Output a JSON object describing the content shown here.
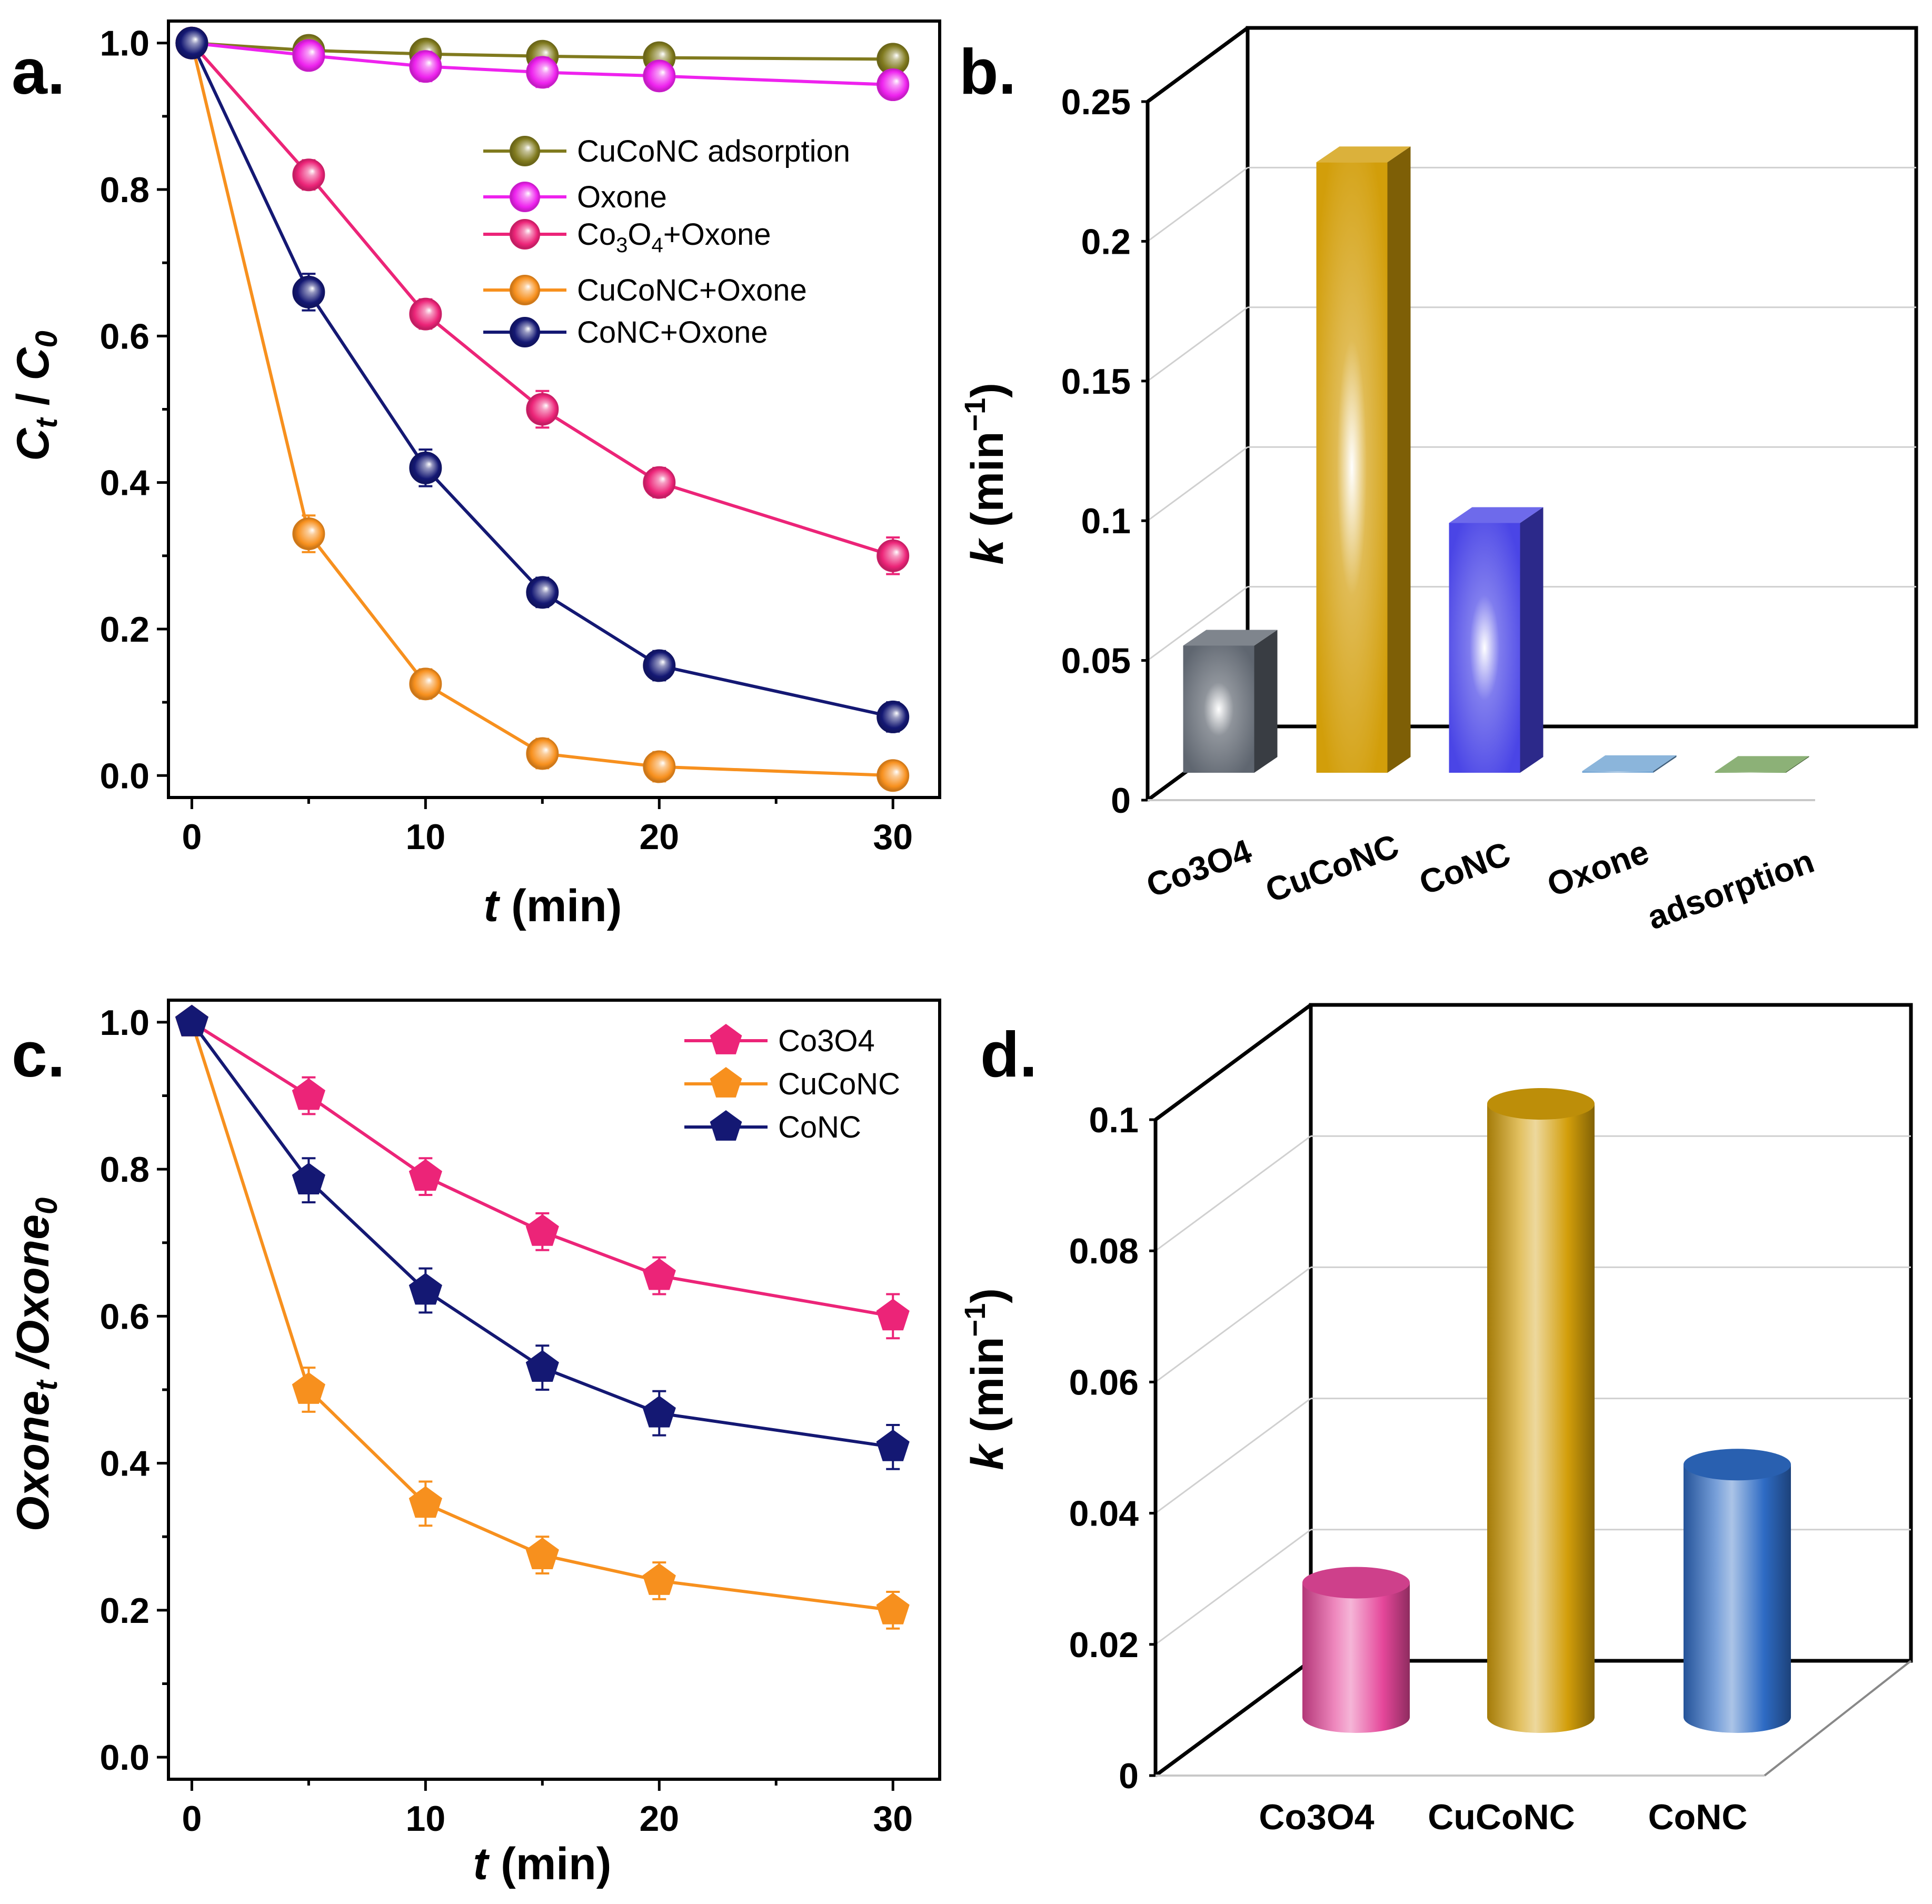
{
  "figure": {
    "panel_labels": {
      "a": "a.",
      "b": "b.",
      "c": "c.",
      "d": "d."
    }
  },
  "chart_data": [
    {
      "panel": "a",
      "type": "line",
      "title": "",
      "ylabel_main": "C",
      "ylabel_sub_t": "t",
      "ylabel_slash": " / ",
      "ylabel_main2": "C",
      "ylabel_sub_0": "0",
      "xlabel_var": "t",
      "xlabel_unit": " (min)",
      "xlim": [
        -1,
        32
      ],
      "ylim": [
        -0.03,
        1.03
      ],
      "xticks": [
        0,
        10,
        20,
        30
      ],
      "xtick_labels": [
        "0",
        "10",
        "20",
        "30"
      ],
      "yticks": [
        0.0,
        0.2,
        0.4,
        0.6,
        0.8,
        1.0
      ],
      "ytick_labels": [
        "0.0",
        "0.2",
        "0.4",
        "0.6",
        "0.8",
        "1.0"
      ],
      "x": [
        0,
        5,
        10,
        15,
        20,
        30
      ],
      "series": [
        {
          "name": "CuCoNC adsorption",
          "color": "#807a1e",
          "marker": "circle",
          "values": [
            1.0,
            0.99,
            0.985,
            0.982,
            0.98,
            0.978
          ],
          "errors": [
            0.006,
            0.015,
            0.015,
            0.015,
            0.015,
            0.012
          ]
        },
        {
          "name": "Oxone",
          "color": "#ee22ee",
          "marker": "circle",
          "values": [
            1.0,
            0.983,
            0.968,
            0.96,
            0.955,
            0.943
          ],
          "errors": [
            0.006,
            0.018,
            0.02,
            0.02,
            0.018,
            0.018
          ]
        },
        {
          "name": "Co3O4+Oxone",
          "color": "#ec2478",
          "marker": "circle",
          "values": [
            1.0,
            0.82,
            0.63,
            0.5,
            0.4,
            0.3
          ],
          "errors": [
            0.006,
            0.02,
            0.02,
            0.025,
            0.02,
            0.025
          ]
        },
        {
          "name": "CuCoNC+Oxone",
          "color": "#f7901e",
          "marker": "circle",
          "values": [
            1.0,
            0.33,
            0.125,
            0.03,
            0.012,
            0.0
          ],
          "errors": [
            0.006,
            0.025,
            0.02,
            0.02,
            0.02,
            0.012
          ]
        },
        {
          "name": "CoNC+Oxone",
          "color": "#141873",
          "marker": "circle",
          "values": [
            1.0,
            0.66,
            0.42,
            0.25,
            0.15,
            0.08
          ],
          "errors": [
            0.006,
            0.025,
            0.025,
            0.02,
            0.02,
            0.02
          ]
        }
      ],
      "legend": [
        {
          "pre": "CuCoNC adsorption"
        },
        {
          "pre": "Oxone"
        },
        {
          "pre": "Co",
          "sub1": "3",
          "mid": "O",
          "sub2": "4",
          "post": "+Oxone"
        },
        {
          "pre": "CuCoNC+Oxone"
        },
        {
          "pre": "CoNC+Oxone"
        }
      ],
      "legend_position": "top-right"
    },
    {
      "panel": "b",
      "type": "bar",
      "style": "3d-box",
      "title": "",
      "ylabel_var": "k",
      "ylabel_unit": " (min",
      "ylabel_sup": "−1",
      "ylabel_close": ")",
      "ylim": [
        0,
        0.25
      ],
      "yticks": [
        0,
        0.05,
        0.1,
        0.15,
        0.2,
        0.25
      ],
      "ytick_labels": [
        "0",
        "0.05",
        "0.1",
        "0.15",
        "0.2",
        "0.25"
      ],
      "categories": [
        "Co3O4",
        "CuCoNC",
        "CoNC",
        "Oxone",
        "adsorption"
      ],
      "values": [
        0.0455,
        0.2185,
        0.0894,
        0.0006,
        0.0003
      ],
      "colors": [
        "#5f6670",
        "#d29e0a",
        "#4a45e6",
        "#6ea2d2",
        "#6f9e55"
      ]
    },
    {
      "panel": "c",
      "type": "line",
      "title": "",
      "ylabel_main": "Oxone",
      "ylabel_sub_t": "t",
      "ylabel_slash": " /",
      "ylabel_main2": "Oxone",
      "ylabel_sub_0": "0",
      "xlabel_var": "t",
      "xlabel_unit": " (min)",
      "xlim": [
        -1,
        32
      ],
      "ylim": [
        -0.03,
        1.03
      ],
      "xticks": [
        0,
        10,
        20,
        30
      ],
      "xtick_labels": [
        "0",
        "10",
        "20",
        "30"
      ],
      "yticks": [
        0.0,
        0.2,
        0.4,
        0.6,
        0.8,
        1.0
      ],
      "ytick_labels": [
        "0.0",
        "0.2",
        "0.4",
        "0.6",
        "0.8",
        "1.0"
      ],
      "x": [
        0,
        5,
        10,
        15,
        20,
        30
      ],
      "series": [
        {
          "name": "Co3O4",
          "color": "#ec2478",
          "marker": "pentagon",
          "values": [
            1.0,
            0.9,
            0.79,
            0.715,
            0.655,
            0.6
          ],
          "errors": [
            0.006,
            0.025,
            0.025,
            0.025,
            0.025,
            0.03
          ]
        },
        {
          "name": "CuCoNC",
          "color": "#f7901e",
          "marker": "pentagon",
          "values": [
            1.0,
            0.5,
            0.345,
            0.275,
            0.24,
            0.2
          ],
          "errors": [
            0.006,
            0.03,
            0.03,
            0.025,
            0.025,
            0.025
          ]
        },
        {
          "name": "CoNC",
          "color": "#141873",
          "marker": "pentagon",
          "values": [
            1.0,
            0.785,
            0.635,
            0.53,
            0.468,
            0.422
          ],
          "errors": [
            0.006,
            0.03,
            0.03,
            0.03,
            0.03,
            0.03
          ]
        }
      ],
      "legend": [
        {
          "pre": "Co3O4"
        },
        {
          "pre": "CuCoNC"
        },
        {
          "pre": "CoNC"
        }
      ],
      "legend_position": "top-right"
    },
    {
      "panel": "d",
      "type": "bar",
      "style": "3d-cylinder",
      "title": "",
      "ylabel_var": "k",
      "ylabel_unit": " (min",
      "ylabel_sup": "−1",
      "ylabel_close": ")",
      "ylim": [
        0,
        0.1
      ],
      "yticks": [
        0,
        0.02,
        0.04,
        0.06,
        0.08,
        0.1
      ],
      "ytick_labels": [
        "0",
        "0.02",
        "0.04",
        "0.06",
        "0.08",
        "0.1"
      ],
      "categories": [
        "Co3O4",
        "CuCoNC",
        "CoNC"
      ],
      "values": [
        0.0205,
        0.0935,
        0.0385
      ],
      "colors": [
        "#e5479a",
        "#d29e0a",
        "#2e6bc4"
      ]
    }
  ]
}
